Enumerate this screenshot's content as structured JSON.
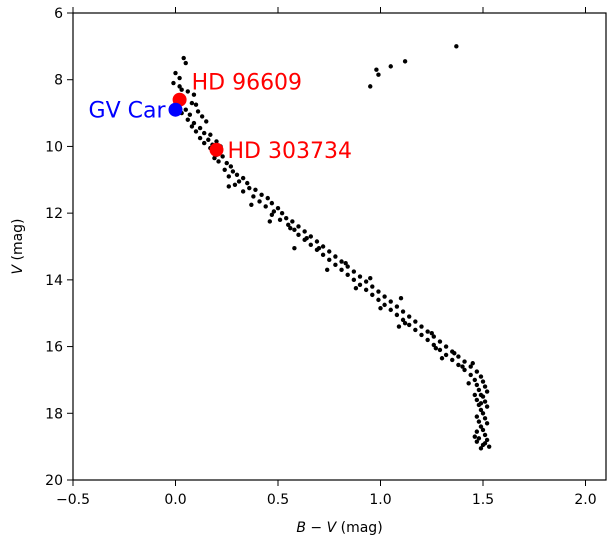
{
  "chart_data": {
    "type": "scatter",
    "title": "",
    "xlabel_parts": [
      "B",
      " − ",
      "V",
      " (mag)"
    ],
    "ylabel_parts": [
      "V",
      " (mag)"
    ],
    "xlim": [
      -0.5,
      2.1
    ],
    "ylim": [
      20,
      6
    ],
    "y_inverted": true,
    "grid": false,
    "x_ticks": [
      -0.5,
      0.0,
      0.5,
      1.0,
      1.5,
      2.0
    ],
    "x_tick_labels": [
      "−0.5",
      "0.0",
      "0.5",
      "1.0",
      "1.5",
      "2.0"
    ],
    "y_ticks": [
      6,
      8,
      10,
      12,
      14,
      16,
      18,
      20
    ],
    "y_tick_labels": [
      "6",
      "8",
      "10",
      "12",
      "14",
      "16",
      "18",
      "20"
    ],
    "colors": {
      "points": "#000000",
      "highlight_red": "#ff0000",
      "highlight_blue": "#0000ff"
    },
    "series": [
      {
        "marker": "small-dot",
        "color": "#000000",
        "points": [
          [
            1.37,
            7.0
          ],
          [
            1.12,
            7.45
          ],
          [
            1.05,
            7.6
          ],
          [
            0.98,
            7.7
          ],
          [
            0.99,
            7.85
          ],
          [
            0.95,
            8.2
          ],
          [
            0.04,
            7.35
          ],
          [
            0.05,
            7.5
          ],
          [
            0.0,
            7.8
          ],
          [
            0.02,
            7.95
          ],
          [
            -0.01,
            8.1
          ],
          [
            0.02,
            8.2
          ],
          [
            0.03,
            8.3
          ],
          [
            0.06,
            8.35
          ],
          [
            0.09,
            8.45
          ],
          [
            0.01,
            8.5
          ],
          [
            0.04,
            8.6
          ],
          [
            0.08,
            8.7
          ],
          [
            0.1,
            8.75
          ],
          [
            0.0,
            8.8
          ],
          [
            0.05,
            8.9
          ],
          [
            0.11,
            8.95
          ],
          [
            0.03,
            9.0
          ],
          [
            0.07,
            9.05
          ],
          [
            0.13,
            9.1
          ],
          [
            0.06,
            9.2
          ],
          [
            0.09,
            9.3
          ],
          [
            0.15,
            9.25
          ],
          [
            0.08,
            9.4
          ],
          [
            0.12,
            9.45
          ],
          [
            0.1,
            9.55
          ],
          [
            0.14,
            9.6
          ],
          [
            0.17,
            9.65
          ],
          [
            0.12,
            9.75
          ],
          [
            0.16,
            9.8
          ],
          [
            0.2,
            9.85
          ],
          [
            0.14,
            9.9
          ],
          [
            0.18,
            9.95
          ],
          [
            0.22,
            10.0
          ],
          [
            0.17,
            10.05
          ],
          [
            0.2,
            10.25
          ],
          [
            0.23,
            10.3
          ],
          [
            0.19,
            10.35
          ],
          [
            0.21,
            10.45
          ],
          [
            0.25,
            10.5
          ],
          [
            0.27,
            10.6
          ],
          [
            0.24,
            10.7
          ],
          [
            0.28,
            10.75
          ],
          [
            0.3,
            10.85
          ],
          [
            0.26,
            10.9
          ],
          [
            0.33,
            10.95
          ],
          [
            0.31,
            11.05
          ],
          [
            0.35,
            11.1
          ],
          [
            0.29,
            11.15
          ],
          [
            0.36,
            11.25
          ],
          [
            0.39,
            11.3
          ],
          [
            0.33,
            11.35
          ],
          [
            0.42,
            11.45
          ],
          [
            0.38,
            11.5
          ],
          [
            0.45,
            11.55
          ],
          [
            0.41,
            11.65
          ],
          [
            0.47,
            11.7
          ],
          [
            0.44,
            11.8
          ],
          [
            0.5,
            11.85
          ],
          [
            0.48,
            11.95
          ],
          [
            0.52,
            12.0
          ],
          [
            0.47,
            12.05
          ],
          [
            0.54,
            12.15
          ],
          [
            0.51,
            12.2
          ],
          [
            0.57,
            12.25
          ],
          [
            0.55,
            12.35
          ],
          [
            0.6,
            12.4
          ],
          [
            0.58,
            12.5
          ],
          [
            0.63,
            12.55
          ],
          [
            0.6,
            12.65
          ],
          [
            0.66,
            12.7
          ],
          [
            0.63,
            12.8
          ],
          [
            0.69,
            12.85
          ],
          [
            0.66,
            12.95
          ],
          [
            0.72,
            13.0
          ],
          [
            0.69,
            13.1
          ],
          [
            0.75,
            13.15
          ],
          [
            0.72,
            13.25
          ],
          [
            0.78,
            13.3
          ],
          [
            0.75,
            13.4
          ],
          [
            0.81,
            13.45
          ],
          [
            0.78,
            13.55
          ],
          [
            0.84,
            13.6
          ],
          [
            0.81,
            13.7
          ],
          [
            0.87,
            13.75
          ],
          [
            0.84,
            13.85
          ],
          [
            0.9,
            13.9
          ],
          [
            0.87,
            14.0
          ],
          [
            0.93,
            14.05
          ],
          [
            0.9,
            14.15
          ],
          [
            0.96,
            14.2
          ],
          [
            0.93,
            14.3
          ],
          [
            0.99,
            14.35
          ],
          [
            0.96,
            14.45
          ],
          [
            1.02,
            14.5
          ],
          [
            0.99,
            14.6
          ],
          [
            1.05,
            14.65
          ],
          [
            1.02,
            14.75
          ],
          [
            1.08,
            14.8
          ],
          [
            1.05,
            14.9
          ],
          [
            1.11,
            14.95
          ],
          [
            1.08,
            15.05
          ],
          [
            1.14,
            15.1
          ],
          [
            1.11,
            15.2
          ],
          [
            1.17,
            15.25
          ],
          [
            1.14,
            15.35
          ],
          [
            1.2,
            15.4
          ],
          [
            1.17,
            15.5
          ],
          [
            1.23,
            15.55
          ],
          [
            1.2,
            15.65
          ],
          [
            1.26,
            15.7
          ],
          [
            1.23,
            15.8
          ],
          [
            1.29,
            15.85
          ],
          [
            1.26,
            15.95
          ],
          [
            1.32,
            16.0
          ],
          [
            1.29,
            16.1
          ],
          [
            1.35,
            16.15
          ],
          [
            1.32,
            16.25
          ],
          [
            1.38,
            16.3
          ],
          [
            1.35,
            16.4
          ],
          [
            1.41,
            16.45
          ],
          [
            1.38,
            16.55
          ],
          [
            1.44,
            16.6
          ],
          [
            1.41,
            16.7
          ],
          [
            1.47,
            16.75
          ],
          [
            1.44,
            16.85
          ],
          [
            1.49,
            16.9
          ],
          [
            1.46,
            17.0
          ],
          [
            1.5,
            17.05
          ],
          [
            1.47,
            17.15
          ],
          [
            1.51,
            17.2
          ],
          [
            1.48,
            17.3
          ],
          [
            1.52,
            17.35
          ],
          [
            1.49,
            17.45
          ],
          [
            1.5,
            17.5
          ],
          [
            1.47,
            17.6
          ],
          [
            1.51,
            17.65
          ],
          [
            1.48,
            17.75
          ],
          [
            1.52,
            17.8
          ],
          [
            1.49,
            17.9
          ],
          [
            1.5,
            18.0
          ],
          [
            1.47,
            18.1
          ],
          [
            1.51,
            18.15
          ],
          [
            1.48,
            18.25
          ],
          [
            1.52,
            18.3
          ],
          [
            1.49,
            18.4
          ],
          [
            1.5,
            18.5
          ],
          [
            1.47,
            18.55
          ],
          [
            1.51,
            18.65
          ],
          [
            1.48,
            18.75
          ],
          [
            1.52,
            18.8
          ],
          [
            1.47,
            18.85
          ],
          [
            1.5,
            18.95
          ],
          [
            1.53,
            19.0
          ],
          [
            1.49,
            19.05
          ],
          [
            1.51,
            18.9
          ],
          [
            1.46,
            18.7
          ],
          [
            0.56,
            12.45
          ],
          [
            0.64,
            12.75
          ],
          [
            0.7,
            13.05
          ],
          [
            0.83,
            13.5
          ],
          [
            0.95,
            13.95
          ],
          [
            1.1,
            14.55
          ],
          [
            1.09,
            15.4
          ],
          [
            1.25,
            15.6
          ],
          [
            1.27,
            16.05
          ],
          [
            1.36,
            16.2
          ],
          [
            1.4,
            16.6
          ],
          [
            1.45,
            16.5
          ],
          [
            0.26,
            11.2
          ],
          [
            0.37,
            11.75
          ],
          [
            0.46,
            12.25
          ],
          [
            0.58,
            13.05
          ],
          [
            0.74,
            13.7
          ],
          [
            0.88,
            14.25
          ],
          [
            1.0,
            14.85
          ],
          [
            1.12,
            15.3
          ],
          [
            1.3,
            16.35
          ],
          [
            1.43,
            17.1
          ],
          [
            1.46,
            17.45
          ],
          [
            1.49,
            17.7
          ]
        ]
      }
    ],
    "highlights": [
      {
        "label": "HD 96609",
        "x": 0.02,
        "y": 8.6,
        "color": "#ff0000"
      },
      {
        "label": "GV Car",
        "x": 0.0,
        "y": 8.9,
        "color": "#0000ff"
      },
      {
        "label": "HD 303734",
        "x": 0.2,
        "y": 10.1,
        "color": "#ff0000"
      }
    ]
  }
}
